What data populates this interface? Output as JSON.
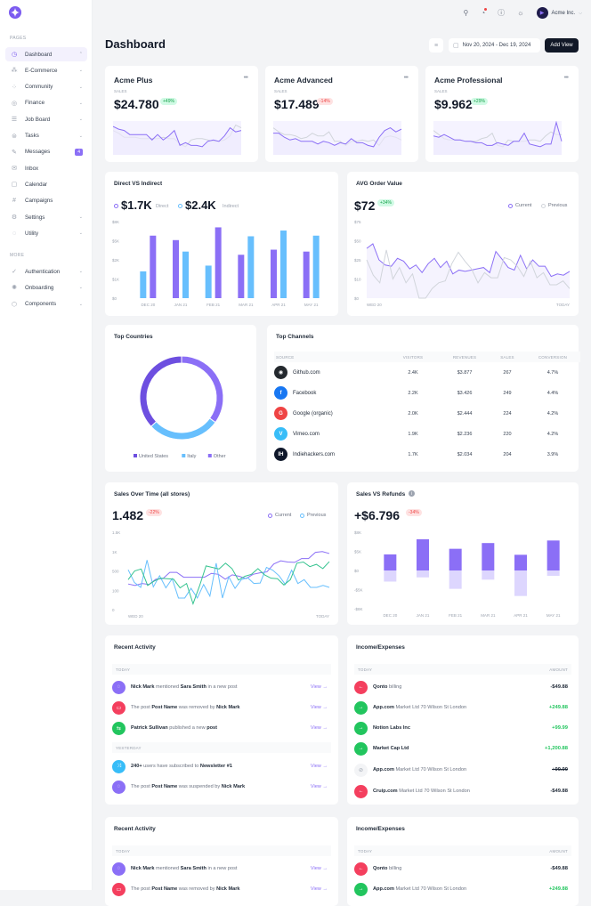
{
  "brand": {
    "accent": "#8b6ff6",
    "dark": "#111827"
  },
  "sidebar": {
    "section_pages": "PAGES",
    "section_more": "MORE",
    "items": [
      {
        "label": "Dashboard",
        "icon": "dashboard-icon",
        "chevron": "up",
        "active": true
      },
      {
        "label": "E-Commerce",
        "icon": "ecommerce-icon",
        "chevron": "down"
      },
      {
        "label": "Community",
        "icon": "community-icon",
        "chevron": "down"
      },
      {
        "label": "Finance",
        "icon": "finance-icon",
        "chevron": "down"
      },
      {
        "label": "Job Board",
        "icon": "job-board-icon",
        "chevron": "down"
      },
      {
        "label": "Tasks",
        "icon": "tasks-icon",
        "chevron": "down"
      },
      {
        "label": "Messages",
        "icon": "messages-icon",
        "badge": "4"
      },
      {
        "label": "Inbox",
        "icon": "inbox-icon"
      },
      {
        "label": "Calendar",
        "icon": "calendar-icon"
      },
      {
        "label": "Campaigns",
        "icon": "campaigns-icon"
      },
      {
        "label": "Settings",
        "icon": "settings-icon",
        "chevron": "down"
      },
      {
        "label": "Utility",
        "icon": "utility-icon",
        "chevron": "down"
      }
    ],
    "more_items": [
      {
        "label": "Authentication",
        "icon": "authentication-icon",
        "chevron": "down"
      },
      {
        "label": "Onboarding",
        "icon": "onboarding-icon",
        "chevron": "down"
      },
      {
        "label": "Components",
        "icon": "components-icon",
        "chevron": "down"
      }
    ]
  },
  "topbar": {
    "account": "Acme Inc."
  },
  "header": {
    "title": "Dashboard",
    "date_range": "Nov 20, 2024 - Dec 19, 2024",
    "add_view": "Add View"
  },
  "kpis": [
    {
      "title": "Acme Plus",
      "label": "SALES",
      "value": "$24.780",
      "change": "+49%",
      "positive": true
    },
    {
      "title": "Acme Advanced",
      "label": "SALES",
      "value": "$17.489",
      "change": "-14%",
      "positive": false
    },
    {
      "title": "Acme Professional",
      "label": "SALES",
      "value": "$9.962",
      "change": "+29%",
      "positive": true
    }
  ],
  "direct_indirect": {
    "title": "Direct VS Indirect",
    "direct_value": "$1.7K",
    "direct_label": "Direct",
    "indirect_value": "$2.4K",
    "indirect_label": "Indirect"
  },
  "avg_order": {
    "title": "AVG Order Value",
    "value": "$72",
    "change": "+34%",
    "legend_current": "Current",
    "legend_previous": "Previous"
  },
  "top_countries": {
    "title": "Top Countries"
  },
  "top_channels": {
    "title": "Top Channels",
    "headers": [
      "SOURCE",
      "VISITORS",
      "REVENUES",
      "SALES",
      "CONVERSION"
    ],
    "rows": [
      {
        "source": "Github.com",
        "icon": "github-icon",
        "icon_text": "◉",
        "color": "#24292e",
        "visitors": "2.4K",
        "revenues": "$3.877",
        "sales": "267",
        "conversion": "4.7%"
      },
      {
        "source": "Facebook",
        "icon": "facebook-icon",
        "icon_text": "f",
        "color": "#1877f2",
        "visitors": "2.2K",
        "revenues": "$3.426",
        "sales": "249",
        "conversion": "4.4%"
      },
      {
        "source": "Google (organic)",
        "icon": "google-icon",
        "icon_text": "G",
        "color": "#ef4444",
        "visitors": "2.0K",
        "revenues": "$2.444",
        "sales": "224",
        "conversion": "4.2%"
      },
      {
        "source": "Vimeo.com",
        "icon": "vimeo-icon",
        "icon_text": "V",
        "color": "#38bdf8",
        "visitors": "1.9K",
        "revenues": "$2.236",
        "sales": "220",
        "conversion": "4.2%"
      },
      {
        "source": "Indiehackers.com",
        "icon": "indiehackers-icon",
        "icon_text": "IH",
        "color": "#0f172a",
        "visitors": "1.7K",
        "revenues": "$2.034",
        "sales": "204",
        "conversion": "3.9%"
      }
    ]
  },
  "sales_over_time": {
    "title": "Sales Over Time (all stores)",
    "value": "1.482",
    "change": "-22%",
    "legend_current": "Current",
    "legend_previous": "Previous"
  },
  "sales_refunds": {
    "title": "Sales VS Refunds",
    "value": "+$6.796",
    "change": "-34%"
  },
  "recent_activity": {
    "title": "Recent Activity",
    "today": "TODAY",
    "yesterday": "YESTERDAY",
    "view": "View →",
    "items_today": [
      {
        "color": "#8b6ff6",
        "icon": "comment-icon",
        "glyph": "◌",
        "parts": [
          [
            "b",
            "Nick Mark"
          ],
          [
            "t",
            " mentioned "
          ],
          [
            "b",
            "Sara Smith"
          ],
          [
            "t",
            " in a new post"
          ]
        ]
      },
      {
        "color": "#f43f5e",
        "icon": "trash-icon",
        "glyph": "▭",
        "parts": [
          [
            "t",
            "The post "
          ],
          [
            "b",
            "Post Name"
          ],
          [
            "t",
            " was removed by "
          ],
          [
            "b",
            "Nick Mark"
          ]
        ]
      },
      {
        "color": "#22c55e",
        "icon": "publish-icon",
        "glyph": "⇆",
        "parts": [
          [
            "b",
            "Patrick Sullivan"
          ],
          [
            "t",
            " published a new "
          ],
          [
            "b",
            "post"
          ]
        ]
      }
    ],
    "items_yesterday": [
      {
        "color": "#38bdf8",
        "icon": "shuffle-icon",
        "glyph": "⤨",
        "parts": [
          [
            "b",
            "240+"
          ],
          [
            "t",
            " users have subscribed to "
          ],
          [
            "b",
            "Newsletter #1"
          ]
        ]
      },
      {
        "color": "#8b6ff6",
        "icon": "comment-icon",
        "glyph": "◌",
        "parts": [
          [
            "t",
            "The post "
          ],
          [
            "b",
            "Post Name"
          ],
          [
            "t",
            " was suspended by "
          ],
          [
            "b",
            "Nick Mark"
          ]
        ]
      }
    ]
  },
  "income_expenses": {
    "title": "Income/Expenses",
    "today": "TODAY",
    "amount": "AMOUNT",
    "items": [
      {
        "type": "out",
        "name": "Qonto",
        "desc": " billing",
        "amount": "-$49.88"
      },
      {
        "type": "in",
        "name": "App.com",
        "desc": " Market Ltd 70 Wilson St London",
        "amount": "+249.88"
      },
      {
        "type": "in",
        "name": "Notion Labs Inc",
        "desc": "",
        "amount": "+99.99"
      },
      {
        "type": "in",
        "name": "Market Cap Ltd",
        "desc": "",
        "amount": "+1,200.88"
      },
      {
        "type": "cancel",
        "name": "App.com",
        "desc": " Market Ltd 70 Wilson St London",
        "amount": "+99.99"
      },
      {
        "type": "out",
        "name": "Cruip.com",
        "desc": " Market Ltd 70 Wilson St London",
        "amount": "-$49.88"
      }
    ]
  },
  "chart_data": [
    {
      "type": "line",
      "name": "acme-plus-sparkline",
      "series": [
        {
          "name": "current",
          "values": [
            42,
            38,
            36,
            30,
            30,
            30,
            30,
            22,
            30,
            22,
            28,
            36,
            14,
            18,
            14,
            14,
            12,
            20,
            22,
            20,
            28,
            40,
            34,
            36
          ]
        },
        {
          "name": "previous",
          "values": [
            36,
            32,
            26,
            26,
            26,
            24,
            24,
            24,
            24,
            26,
            24,
            24,
            16,
            12,
            22,
            24,
            24,
            22,
            20,
            20,
            22,
            28,
            44,
            40
          ]
        }
      ]
    },
    {
      "type": "line",
      "name": "acme-advanced-sparkline",
      "series": [
        {
          "name": "current",
          "values": [
            32,
            32,
            26,
            22,
            24,
            20,
            20,
            20,
            16,
            20,
            18,
            14,
            18,
            16,
            24,
            18,
            18,
            14,
            12,
            26,
            36,
            40,
            34,
            38
          ]
        },
        {
          "name": "previous",
          "values": [
            40,
            34,
            30,
            30,
            28,
            24,
            26,
            32,
            28,
            28,
            34,
            20,
            20,
            14,
            20,
            20,
            22,
            20,
            22,
            14,
            26,
            28,
            26,
            22
          ]
        }
      ]
    },
    {
      "type": "line",
      "name": "acme-professional-sparkline",
      "series": [
        {
          "name": "current",
          "values": [
            28,
            26,
            30,
            26,
            22,
            22,
            20,
            20,
            18,
            18,
            14,
            14,
            18,
            16,
            14,
            20,
            20,
            32,
            16,
            14,
            12,
            16,
            16,
            48,
            20
          ]
        },
        {
          "name": "previous",
          "values": [
            36,
            30,
            24,
            22,
            22,
            22,
            20,
            20,
            20,
            24,
            26,
            32,
            14,
            12,
            22,
            20,
            20,
            20,
            22,
            22,
            20,
            28,
            34,
            30,
            30
          ]
        }
      ]
    },
    {
      "type": "bar",
      "name": "direct-vs-indirect",
      "categories": [
        "DEC 20",
        "JAN 21",
        "FEB 21",
        "MAR 21",
        "APR 21",
        "MAY 21"
      ],
      "yticks": [
        "$0",
        "$1K",
        "$2K",
        "$5K",
        "$8K"
      ],
      "ylim": [
        0,
        8
      ],
      "series": [
        {
          "name": "Direct",
          "color": "#8b6ff6",
          "values": [
            5.8,
            5.1,
            7.1,
            2.8,
            3.6,
            3.3
          ]
        },
        {
          "name": "Indirect",
          "color": "#67bffd",
          "values": [
            1.4,
            3.3,
            1.7,
            5.7,
            6.6,
            5.8
          ]
        }
      ],
      "order": [
        "Indirect",
        "Direct",
        "Direct",
        "Indirect",
        "Direct",
        "Indirect"
      ]
    },
    {
      "type": "line",
      "name": "avg-order-value",
      "xlabels": [
        "WED 20",
        "TODAY"
      ],
      "yticks": [
        "$0",
        "$10",
        "$25",
        "$50",
        "$75"
      ],
      "ylim": [
        0,
        75
      ],
      "series": [
        {
          "name": "Current",
          "color": "#8b6ff6",
          "values": [
            40,
            46,
            25,
            21,
            20,
            27,
            24,
            18,
            21,
            15,
            22,
            27,
            19,
            24,
            14,
            17,
            16,
            17,
            18,
            19,
            15,
            36,
            26,
            19,
            17,
            31,
            18,
            25,
            20,
            20,
            12,
            14,
            13,
            16
          ]
        },
        {
          "name": "Previous",
          "color": "#d1d5db",
          "values": [
            25,
            13,
            8,
            38,
            10,
            19,
            8,
            14,
            0,
            0,
            5,
            8,
            9,
            22,
            35,
            24,
            18,
            8,
            15,
            11,
            11,
            28,
            25,
            20,
            12,
            24,
            11,
            15,
            7,
            7,
            9,
            5
          ]
        }
      ]
    },
    {
      "type": "pie",
      "name": "top-countries",
      "donut": true,
      "labels": [
        "United States",
        "Italy",
        "Other"
      ],
      "values": [
        37,
        28,
        35
      ],
      "colors": [
        "#6d4fe0",
        "#67bffd",
        "#8b6ff6"
      ]
    },
    {
      "type": "line",
      "name": "sales-over-time",
      "xlabels": [
        "WED 20",
        "TODAY"
      ],
      "yticks": [
        "0",
        "100",
        "500",
        "1K",
        "1.5K"
      ],
      "ylim": [
        0,
        1500
      ],
      "series": [
        {
          "name": "Current",
          "color": "#8b6ff6",
          "values": [
            230,
            200,
            240,
            220,
            330,
            340,
            470,
            470,
            370,
            370,
            370,
            370,
            450,
            430,
            330,
            420,
            390,
            340,
            430,
            460,
            480,
            680,
            760,
            730,
            720,
            820,
            820,
            980,
            1000,
            950
          ]
        },
        {
          "name": "Previous",
          "color": "#67bffd",
          "values": [
            530,
            260,
            160,
            780,
            170,
            400,
            150,
            340,
            60,
            60,
            140,
            60,
            220,
            70,
            700,
            60,
            380,
            140,
            320,
            360,
            240,
            250,
            590,
            520,
            400,
            220,
            520,
            240,
            320,
            160,
            160,
            200,
            160
          ]
        },
        {
          "name": "Other",
          "color": "#34c38f",
          "values": [
            320,
            500,
            550,
            200,
            290,
            350,
            340,
            330,
            150,
            240,
            30,
            190,
            630,
            590,
            550,
            700,
            560,
            310,
            390,
            430,
            560,
            420,
            350,
            340,
            210,
            320,
            700,
            730,
            610,
            670,
            560,
            740
          ]
        }
      ]
    },
    {
      "type": "bar",
      "name": "sales-vs-refunds",
      "categories": [
        "DEC 20",
        "JAN 21",
        "FEB 21",
        "MAR 21",
        "APR 21",
        "MAY 21"
      ],
      "yticks": [
        "-$8K",
        "-$5K",
        "$0",
        "$5K",
        "$8K"
      ],
      "ylim": [
        -8,
        8
      ],
      "series": [
        {
          "name": "Sales",
          "color": "#8b6ff6",
          "values": [
            4.2,
            6.9,
            5.4,
            6.3,
            4.1,
            6.7
          ]
        },
        {
          "name": "Refunds",
          "color": "#ddd6fe",
          "values": [
            -2.9,
            -1.8,
            -4.8,
            -2.4,
            -6.0,
            -1.4
          ]
        }
      ]
    }
  ]
}
